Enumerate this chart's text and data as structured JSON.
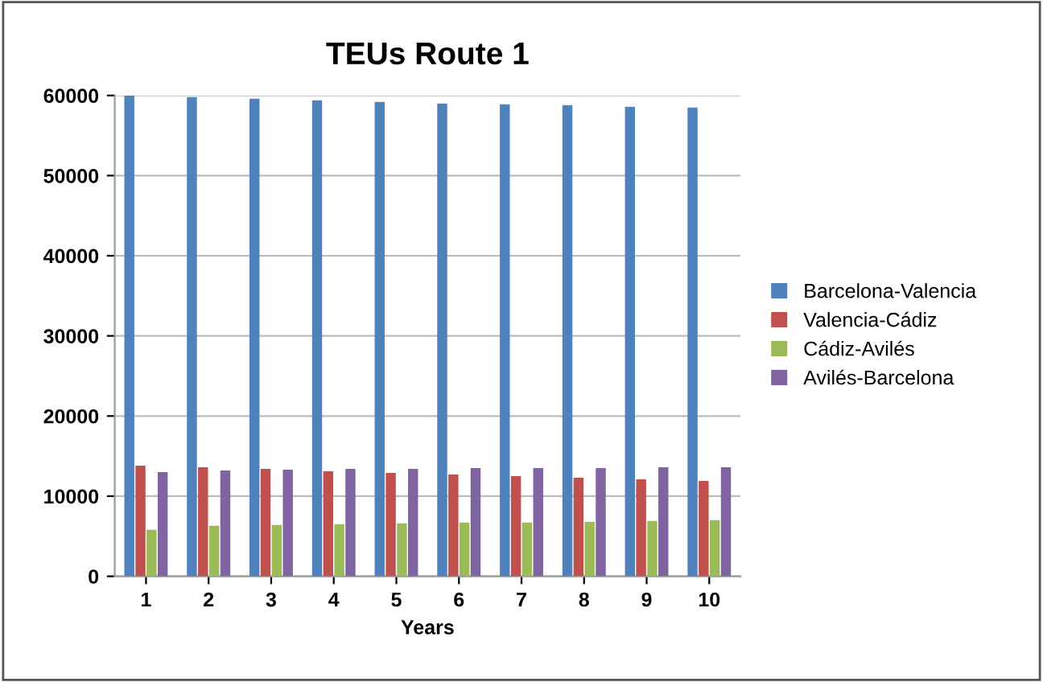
{
  "chart_data": {
    "type": "bar",
    "title": "TEUs Route 1",
    "xlabel": "Years",
    "categories": [
      "1",
      "2",
      "3",
      "4",
      "5",
      "6",
      "7",
      "8",
      "9",
      "10"
    ],
    "series": [
      {
        "name": "Barcelona-Valencia",
        "color": "#4f81bd",
        "values": [
          60000,
          59800,
          59600,
          59400,
          59200,
          59000,
          58900,
          58800,
          58600,
          58500
        ]
      },
      {
        "name": "Valencia-Cádiz",
        "color": "#c0504d",
        "values": [
          13800,
          13600,
          13400,
          13100,
          12900,
          12700,
          12500,
          12300,
          12100,
          11900
        ]
      },
      {
        "name": "Cádiz-Avilés",
        "color": "#9bbb59",
        "values": [
          5800,
          6300,
          6400,
          6500,
          6600,
          6700,
          6700,
          6800,
          6900,
          7000
        ]
      },
      {
        "name": "Avilés-Barcelona",
        "color": "#8064a2",
        "values": [
          13000,
          13200,
          13300,
          13400,
          13400,
          13500,
          13500,
          13500,
          13600,
          13600
        ]
      }
    ],
    "ylim": [
      0,
      60000
    ],
    "yticks": [
      0,
      10000,
      20000,
      30000,
      40000,
      50000,
      60000
    ],
    "grid": "y",
    "legend": "right"
  }
}
